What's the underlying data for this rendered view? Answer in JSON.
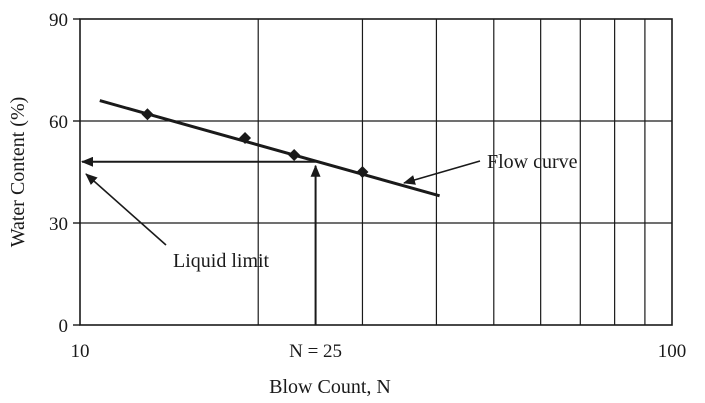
{
  "chart_data": {
    "type": "scatter",
    "x_scale": "log",
    "xlim": [
      10,
      100
    ],
    "ylim": [
      0,
      90
    ],
    "xlabel": "Blow Count, N",
    "ylabel": "Water Content (%)",
    "x_ticks": [
      {
        "value": 10,
        "label": "10"
      },
      {
        "value": 25,
        "label": "N = 25"
      },
      {
        "value": 100,
        "label": "100"
      }
    ],
    "y_ticks": [
      {
        "value": 0,
        "label": "0"
      },
      {
        "value": 30,
        "label": "30"
      },
      {
        "value": 60,
        "label": "60"
      },
      {
        "value": 90,
        "label": "90"
      }
    ],
    "x_gridlines": [
      20,
      30,
      40,
      50,
      60,
      70,
      80,
      90
    ],
    "y_gridlines": [
      30,
      60
    ],
    "series": [
      {
        "points": [
          {
            "x": 13,
            "y": 62
          },
          {
            "x": 19,
            "y": 55
          },
          {
            "x": 23,
            "y": 50
          },
          {
            "x": 30,
            "y": 45
          }
        ],
        "color": "#1a1a1a"
      }
    ],
    "flow_curve": {
      "x": [
        10.8,
        40.5
      ],
      "y": [
        66,
        38
      ]
    },
    "liquid_limit": {
      "x": 25,
      "y": 48
    },
    "annotations": {
      "flow_curve_label": "Flow curve",
      "liquid_limit_label": "Liquid limit",
      "n25_label": "N = 25"
    }
  }
}
